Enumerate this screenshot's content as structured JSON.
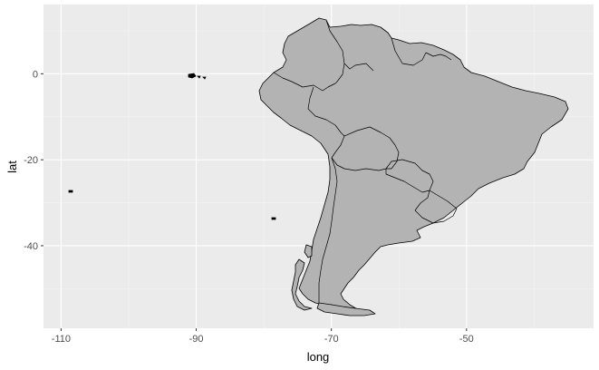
{
  "chart_data": {
    "type": "map",
    "xlabel": "long",
    "ylabel": "lat",
    "x_ticks": [
      -110,
      -90,
      -70,
      -50
    ],
    "y_ticks": [
      0,
      -20,
      -40
    ],
    "xlim": [
      -112.6,
      -31.2
    ],
    "ylim": [
      -59.2,
      16.1
    ],
    "grid": true,
    "region": "South America",
    "colors": {
      "panel": "#ebebeb",
      "grid_major": "#ffffff",
      "land_fill": "#b3b3b3",
      "border": "#000000",
      "tick_text": "#4d4d4d"
    }
  }
}
